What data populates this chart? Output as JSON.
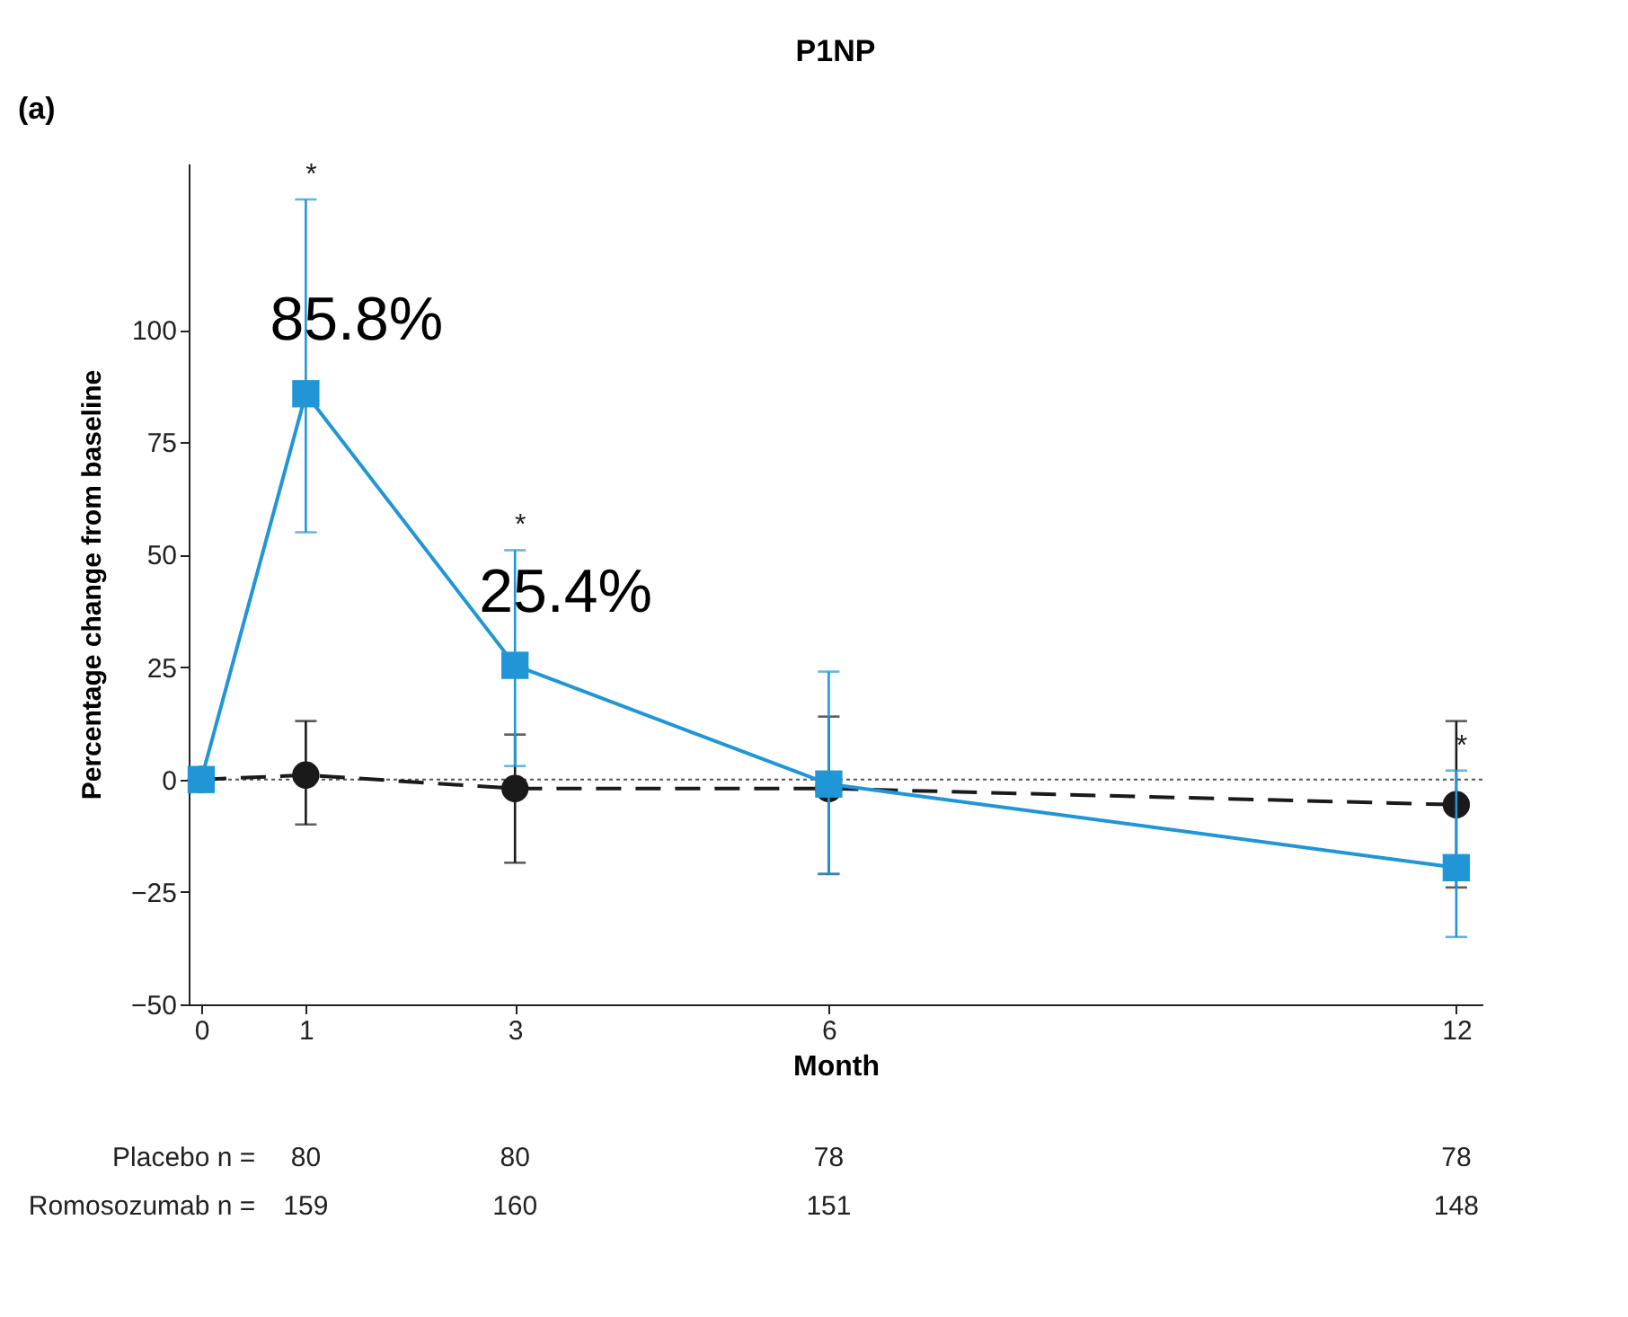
{
  "chart_data": {
    "type": "line",
    "title": "P1NP",
    "xlabel": "Month",
    "ylabel": "Percentage change from baseline",
    "x": [
      0,
      1,
      3,
      6,
      12
    ],
    "xlim": [
      -0.12,
      12.25
    ],
    "xticks": [
      0,
      1,
      3,
      6,
      12
    ],
    "ylim": [
      -50,
      137
    ],
    "yticks": [
      -50,
      -25,
      0,
      25,
      50,
      75,
      100
    ],
    "series": [
      {
        "color": "#1a1a1a",
        "line_style": "dashed",
        "marker": "circle",
        "values": [
          0,
          1,
          -2,
          -2,
          -5.6
        ],
        "errors": [
          null,
          [
            -10,
            13
          ],
          [
            -18.5,
            10
          ],
          [
            -21,
            14
          ],
          [
            -24,
            13
          ]
        ]
      },
      {
        "color": "#2196d6",
        "line_style": "solid",
        "marker": "square",
        "values": [
          0,
          85.8,
          25.4,
          -1,
          -19.6
        ],
        "errors": [
          null,
          [
            55,
            129
          ],
          [
            3,
            51
          ],
          [
            -21,
            24
          ],
          [
            -35,
            2
          ]
        ],
        "value_labels": [
          null,
          "85.8%",
          "25.4%",
          null,
          null
        ]
      }
    ],
    "ref_lines": [
      {
        "axis": "y",
        "value": 0,
        "line_style": "dotted",
        "color": "#555555"
      }
    ],
    "annotations": [
      "(a)",
      "Placebo n =",
      "80",
      "80",
      "78",
      "78",
      "Romosozumab n =",
      "159",
      "160",
      "151",
      "148",
      {
        "text": "*",
        "x": 1,
        "y": 129
      },
      {
        "text": "*",
        "x": 3,
        "y": 51
      },
      {
        "text": "*",
        "x": 12,
        "y": 2
      }
    ],
    "grid": false
  }
}
